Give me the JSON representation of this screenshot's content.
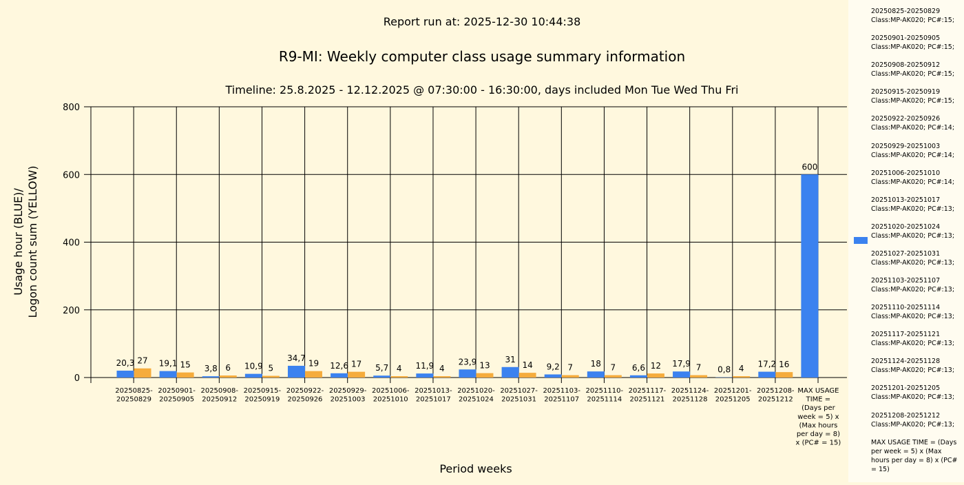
{
  "header": {
    "report_run": "Report run at: 2025-12-30 10:44:38",
    "title": "R9-MI: Weekly computer class usage summary information",
    "timeline": "Timeline:  25.8.2025  - 12.12.2025  @  07:30:00 -  16:30:00, days included Mon Tue Wed Thu Fri"
  },
  "colors": {
    "usage": "#3b82ef",
    "logon": "#f5ac3c",
    "background": "#fff8de",
    "grid": "#000000"
  },
  "chart_data": {
    "type": "bar",
    "ylabel": "Usage hour (BLUE)/ Logon count sum (YELLOW)",
    "ylabel_lines": [
      "Usage hour (BLUE)/",
      "Logon count sum (YELLOW)"
    ],
    "xlabel": "Period weeks",
    "ylim": [
      0,
      800
    ],
    "yticks": [
      0,
      200,
      400,
      600,
      800
    ],
    "grid": true,
    "legend_position": "right",
    "categories": [
      "20250825-20250829",
      "20250901-20250905",
      "20250908-20250912",
      "20250915-20250919",
      "20250922-20250926",
      "20250929-20251003",
      "20251006-20251010",
      "20251013-20251017",
      "20251020-20251024",
      "20251027-20251031",
      "20251103-20251107",
      "20251110-20251114",
      "20251117-20251121",
      "20251124-20251128",
      "20251201-20251205",
      "20251208-20251212",
      "MAX USAGE TIME = (Days per week = 5) x (Max hours per day = 8) x (PC# = 15)"
    ],
    "category_label_lines": [
      [
        "20250825-",
        "20250829"
      ],
      [
        "20250901-",
        "20250905"
      ],
      [
        "20250908-",
        "20250912"
      ],
      [
        "20250915-",
        "20250919"
      ],
      [
        "20250922-",
        "20250926"
      ],
      [
        "20250929-",
        "20251003"
      ],
      [
        "20251006-",
        "20251010"
      ],
      [
        "20251013-",
        "20251017"
      ],
      [
        "20251020-",
        "20251024"
      ],
      [
        "20251027-",
        "20251031"
      ],
      [
        "20251103-",
        "20251107"
      ],
      [
        "20251110-",
        "20251114"
      ],
      [
        "20251117-",
        "20251121"
      ],
      [
        "20251124-",
        "20251128"
      ],
      [
        "20251201-",
        "20251205"
      ],
      [
        "20251208-",
        "20251212"
      ],
      [
        "MAX USAGE",
        "TIME =",
        "(Days per",
        "week = 5) x",
        "(Max hours",
        "per day = 8)",
        "x (PC# = 15)"
      ]
    ],
    "series": [
      {
        "color": "#3b82ef",
        "values": [
          20.3,
          19.1,
          3.8,
          10.9,
          34.7,
          12.6,
          5.7,
          11.9,
          23.9,
          31,
          9.2,
          18,
          6.6,
          17.9,
          0.8,
          17.2,
          600
        ],
        "labels": [
          "20,3",
          "19,1",
          "3,8",
          "10,9",
          "34,7",
          "12,6",
          "5,7",
          "11,9",
          "23,9",
          "31",
          "9,2",
          "18",
          "6,6",
          "17,9",
          "0,8",
          "17,2",
          "600"
        ]
      },
      {
        "color": "#f5ac3c",
        "values": [
          27,
          15,
          6,
          5,
          19,
          17,
          4,
          4,
          13,
          14,
          7,
          7,
          12,
          7,
          4,
          16,
          null
        ],
        "labels": [
          "27",
          "15",
          "6",
          "5",
          "19",
          "17",
          "4",
          "4",
          "13",
          "14",
          "7",
          "7",
          "12",
          "7",
          "4",
          "16",
          ""
        ]
      }
    ]
  },
  "legend": {
    "entries": [
      {
        "period": "20250825-20250829",
        "detail": "Class:MP-AK020; PC#:15;"
      },
      {
        "period": "20250901-20250905",
        "detail": "Class:MP-AK020; PC#:15;"
      },
      {
        "period": "20250908-20250912",
        "detail": "Class:MP-AK020; PC#:15;"
      },
      {
        "period": "20250915-20250919",
        "detail": "Class:MP-AK020; PC#:15;"
      },
      {
        "period": "20250922-20250926",
        "detail": "Class:MP-AK020; PC#:14;"
      },
      {
        "period": "20250929-20251003",
        "detail": "Class:MP-AK020; PC#:14;"
      },
      {
        "period": "20251006-20251010",
        "detail": "Class:MP-AK020; PC#:14;"
      },
      {
        "period": "20251013-20251017",
        "detail": "Class:MP-AK020; PC#:13;"
      },
      {
        "period": "20251020-20251024",
        "detail": "Class:MP-AK020; PC#:13;"
      },
      {
        "period": "20251027-20251031",
        "detail": "Class:MP-AK020; PC#:13;"
      },
      {
        "period": "20251103-20251107",
        "detail": "Class:MP-AK020; PC#:13;"
      },
      {
        "period": "20251110-20251114",
        "detail": "Class:MP-AK020; PC#:13;"
      },
      {
        "period": "20251117-20251121",
        "detail": "Class:MP-AK020; PC#:13;"
      },
      {
        "period": "20251124-20251128",
        "detail": "Class:MP-AK020; PC#:13;"
      },
      {
        "period": "20251201-20251205",
        "detail": "Class:MP-AK020; PC#:13;"
      },
      {
        "period": "20251208-20251212",
        "detail": "Class:MP-AK020; PC#:13;"
      }
    ],
    "max_entry": "MAX USAGE TIME = (Days per week = 5) x (Max hours per day = 8) x (PC# = 15)"
  }
}
